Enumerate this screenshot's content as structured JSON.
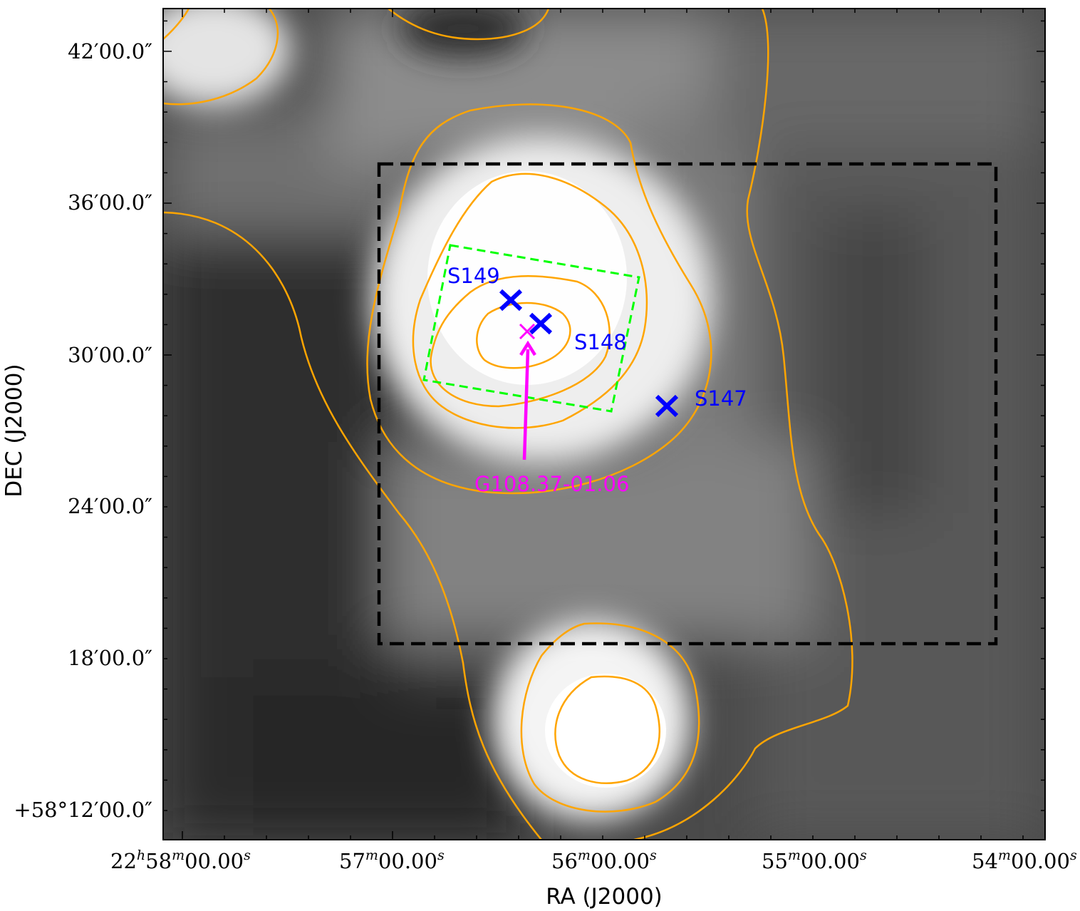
{
  "figure": {
    "x_axis_label": "RA (J2000)",
    "y_axis_label": "DEC (J2000)",
    "ra_ticks": [
      {
        "h": "22",
        "m": "58",
        "s": "00.00"
      },
      {
        "m": "57",
        "s": "00.00"
      },
      {
        "m": "56",
        "s": "00.00"
      },
      {
        "m": "55",
        "s": "00.00"
      },
      {
        "m": "54",
        "s": "00.00"
      }
    ],
    "dec_ticks": [
      "42′00.0″",
      "36′00.0″",
      "30′00.0″",
      "24′00.0″",
      "18′00.0″",
      "+58°12′00.0″"
    ],
    "sources": [
      {
        "name": "S149",
        "color": "#0000ff"
      },
      {
        "name": "S148",
        "color": "#0000ff"
      },
      {
        "name": "S147",
        "color": "#0000ff"
      }
    ],
    "target": {
      "name": "G108.37-01.06",
      "color": "#ff00ff"
    },
    "colors": {
      "contour": "#ffa500",
      "outer_box": "#000000",
      "inner_box": "#00ff00",
      "marker": "#0000ff",
      "target": "#ff00ff"
    }
  }
}
